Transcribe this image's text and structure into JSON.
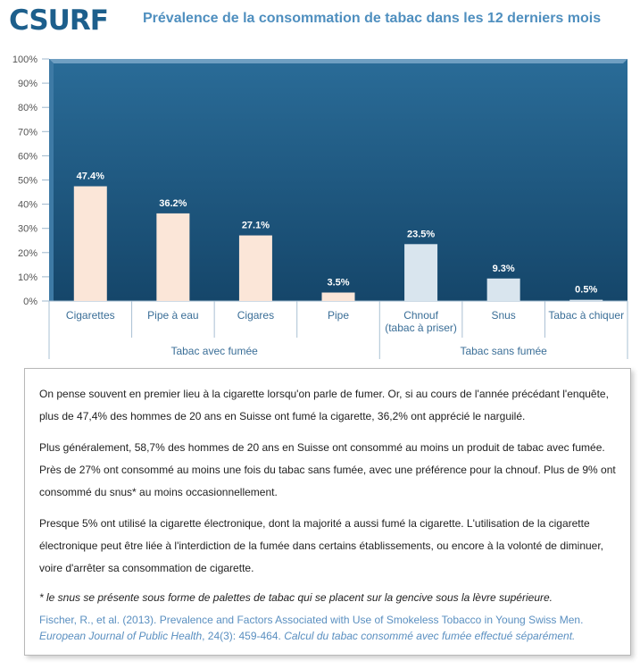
{
  "header": {
    "logo": "CSURF",
    "title": "Prévalence de la consommation de tabac dans les 12 derniers mois"
  },
  "colors": {
    "plot_bg": "#1e5b85",
    "smoke_bar": "#fbe6d8",
    "smokeless_bar": "#d9e5ee",
    "axis_text": "#555555",
    "category_text": "#3a6e97"
  },
  "chart_data": {
    "type": "bar",
    "categories": [
      "Cigarettes",
      "Pipe à eau",
      "Cigares",
      "Pipe",
      "Chnouf (tabac à priser)",
      "Snus",
      "Tabac à chiquer"
    ],
    "category_lines": [
      [
        "Cigarettes"
      ],
      [
        "Pipe à eau"
      ],
      [
        "Cigares"
      ],
      [
        "Pipe"
      ],
      [
        "Chnouf",
        "(tabac à priser)"
      ],
      [
        "Snus"
      ],
      [
        "Tabac à chiquer"
      ]
    ],
    "values": [
      47.4,
      36.2,
      27.1,
      3.5,
      23.5,
      9.3,
      0.5
    ],
    "value_labels": [
      "47.4%",
      "36.2%",
      "27.1%",
      "3.5%",
      "23.5%",
      "9.3%",
      "0.5%"
    ],
    "groups": [
      {
        "label": "Tabac avec fumée",
        "count": 4
      },
      {
        "label": "Tabac sans fumée",
        "count": 3
      }
    ],
    "ylim": [
      0,
      100
    ],
    "yticks": [
      "0%",
      "10%",
      "20%",
      "30%",
      "40%",
      "50%",
      "60%",
      "70%",
      "80%",
      "90%",
      "100%"
    ],
    "grid": false,
    "legend": "none"
  },
  "text": {
    "p1": "On pense souvent en premier lieu à la cigarette lorsqu'on parle de fumer. Or, si au cours de l'année précédant l'enquête, plus de 47,4% des hommes de 20 ans en Suisse ont fumé la cigarette, 36,2% ont apprécié le narguilé.",
    "p2": "Plus généralement, 58,7% des hommes de 20 ans en Suisse ont consommé au moins un produit de tabac avec fumée. Près de 27% ont consommé au moins une fois du tabac sans fumée, avec une préférence pour la chnouf. Plus de 9% ont consommé du snus* au moins occasionnellement.",
    "p3": "Presque 5% ont utilisé la cigarette électronique, dont la majorité a aussi fumé la cigarette. L'utilisation de la cigarette électronique peut être liée à l'interdiction de la fumée dans certains établissements, ou encore à la volonté de diminuer, voire d'arrêter sa consommation de cigarette.",
    "note": "* le snus se présente sous forme de palettes de tabac qui se placent sur la gencive sous la lèvre supérieure.",
    "ref_authors": "Fischer, R., et al. (2013). Prevalence and Factors Associated with Use of Smokeless Tobacco in Young Swiss Men.",
    "ref_journal": "European Journal of Public Health",
    "ref_pages": ", 24(3): 459-464.",
    "ref_remark": "Calcul du tabac consommé avec fumée effectué séparément."
  }
}
